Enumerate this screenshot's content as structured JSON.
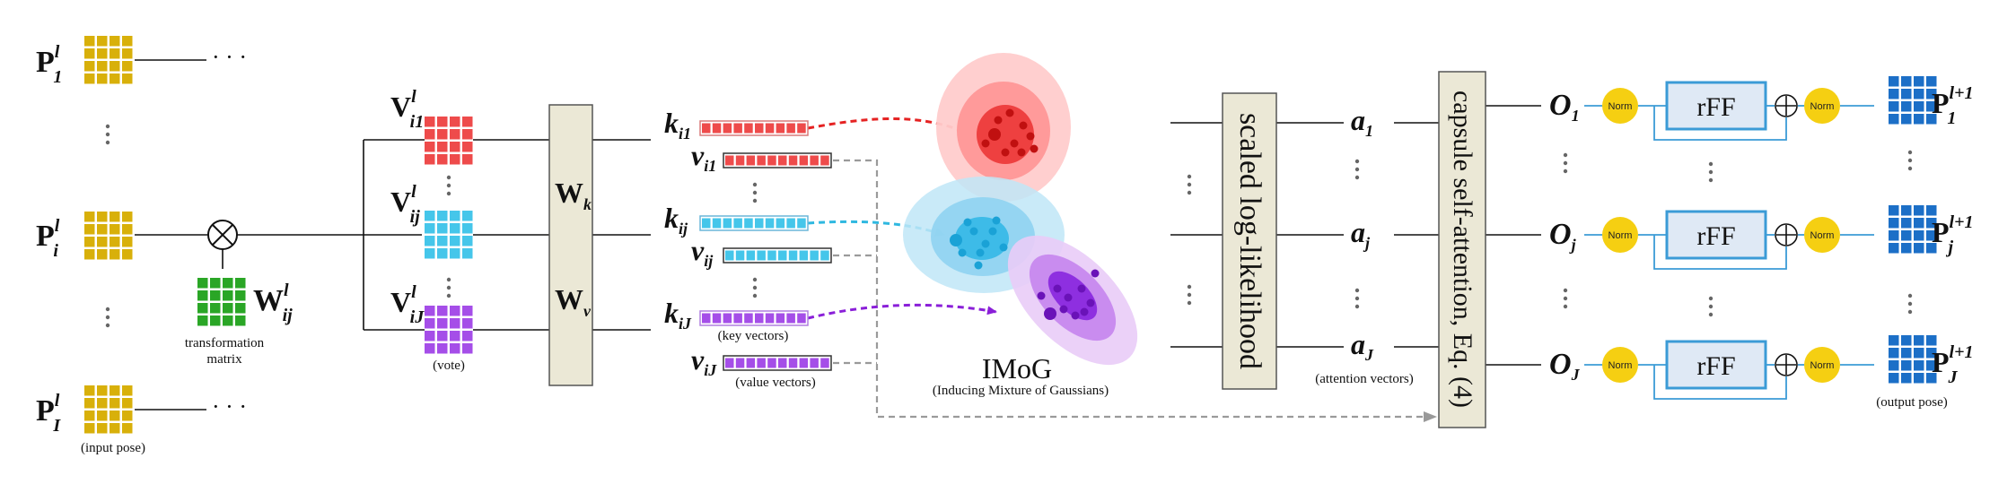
{
  "colors": {
    "yellow": "#d8b00a",
    "red": "#ee4b4b",
    "cyan": "#45c6ea",
    "purple": "#a54ee8",
    "green": "#2aa626",
    "orange": "#ee9a33",
    "lilac": "#d59be6",
    "blue": "#1c6fc7",
    "norm": "#f5cf12",
    "panel": "#ebe8d6",
    "rff_fill": "#dfe9f5",
    "connector": "#3b9bd6"
  },
  "icons": {
    "multiply": "otimes-icon",
    "add": "oplus-icon",
    "ellipsis_h": "horizontal-ellipsis-icon",
    "ellipsis_v": "vertical-ellipsis-icon",
    "dashed_arrow": "dashed-arrow-icon"
  },
  "input": {
    "labels": [
      {
        "base": "P",
        "sup": "l",
        "sub": "1"
      },
      {
        "base": "P",
        "sup": "l",
        "sub": "i"
      },
      {
        "base": "P",
        "sup": "l",
        "sub": "I"
      }
    ],
    "caption": "(input pose)",
    "ellipsis": "· · ·"
  },
  "transform": {
    "label": {
      "base": "W",
      "sup": "l",
      "sub": "ij"
    },
    "caption_line1": "transformation",
    "caption_line2": "matrix"
  },
  "votes": {
    "labels": [
      {
        "base": "V",
        "sup": "l",
        "sub": "i1"
      },
      {
        "base": "V",
        "sup": "l",
        "sub": "ij"
      },
      {
        "base": "V",
        "sup": "l",
        "sub": "iJ"
      }
    ],
    "caption": "(vote)"
  },
  "projection": {
    "wk": {
      "base": "W",
      "sub": "k"
    },
    "wv": {
      "base": "W",
      "sub": "v"
    }
  },
  "kv": {
    "keys": [
      {
        "base": "k",
        "sub": "i1"
      },
      {
        "base": "k",
        "sub": "ij"
      },
      {
        "base": "k",
        "sub": "iJ"
      }
    ],
    "values": [
      {
        "base": "v",
        "sub": "i1"
      },
      {
        "base": "v",
        "sub": "ij"
      },
      {
        "base": "v",
        "sub": "iJ"
      }
    ],
    "key_caption": "(key vectors)",
    "value_caption": "(value vectors)"
  },
  "imog": {
    "title": "IMoG",
    "subtitle": "(Inducing Mixture of Gaussians)"
  },
  "loglik": {
    "label": "scaled log-likelihood"
  },
  "attention": {
    "labels": [
      {
        "base": "a",
        "sub": "1"
      },
      {
        "base": "a",
        "sub": "j"
      },
      {
        "base": "a",
        "sub": "J"
      }
    ],
    "caption": "(attention vectors)"
  },
  "selfattn": {
    "label": "capsule self-attention, Eq. (4)"
  },
  "outputs": {
    "o_labels": [
      {
        "base": "O",
        "sub": "1"
      },
      {
        "base": "O",
        "sub": "j"
      },
      {
        "base": "O",
        "sub": "J"
      }
    ],
    "norm": "Norm",
    "rff": "rFF",
    "p_labels": [
      {
        "base": "P",
        "sup": "l+1",
        "sub": "1"
      },
      {
        "base": "P",
        "sup": "l+1",
        "sub": "j"
      },
      {
        "base": "P",
        "sup": "l+1",
        "sub": "J"
      }
    ],
    "caption": "(output pose)"
  }
}
